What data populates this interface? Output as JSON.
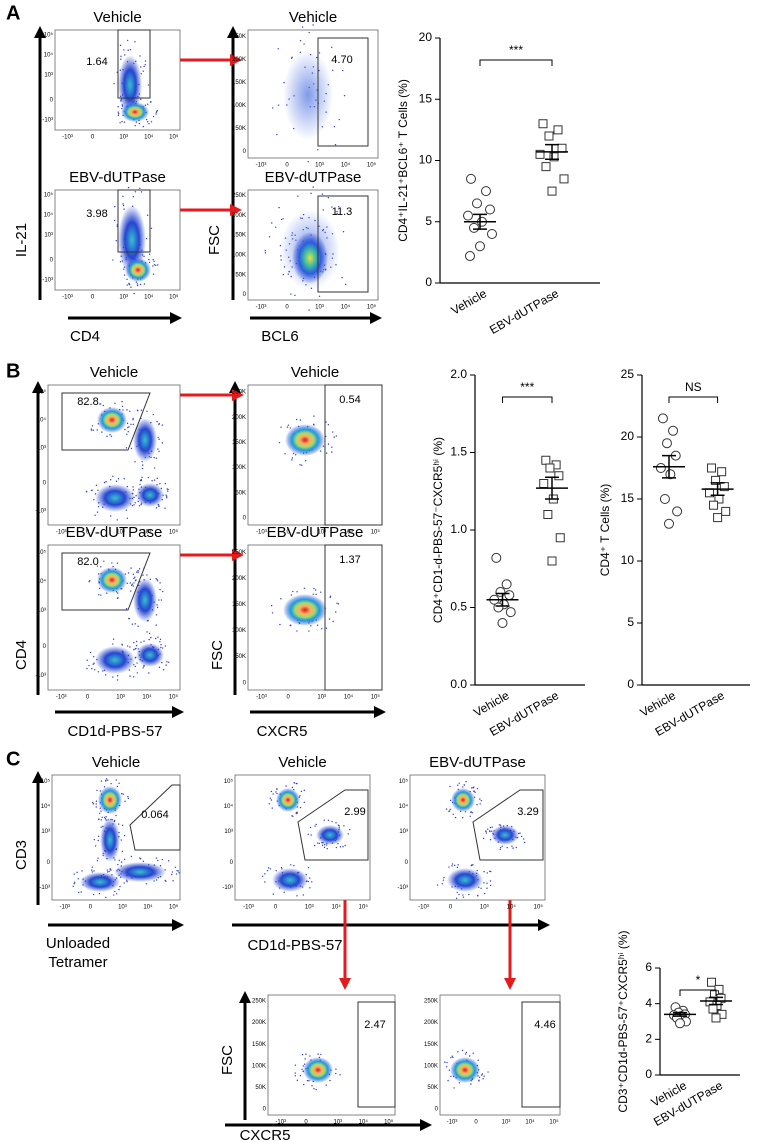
{
  "panel_labels": [
    "A",
    "B",
    "C"
  ],
  "axis_labels": [
    "IL-21",
    "CD4",
    "FSC",
    "BCL6",
    "CD4",
    "CD1d-PBS-57",
    "FSC",
    "CXCR5",
    "CD3",
    "Unloaded",
    "Tetramer",
    "CD1d-PBS-57",
    "FSC",
    "CXCR5"
  ],
  "flow_ticks": {
    "log": [
      "-10³",
      "0",
      "10³",
      "10⁴",
      "10⁵"
    ],
    "fsc": [
      "0",
      "50K",
      "100K",
      "150K",
      "200K",
      "250K"
    ]
  },
  "flow_plots": [
    {
      "title": "Vehicle",
      "gate": "1.64"
    },
    {
      "title": "EBV-dUTPase",
      "gate": "3.98"
    },
    {
      "title": "Vehicle",
      "gate": "4.70"
    },
    {
      "title": "EBV-dUTPase",
      "gate": "11.3"
    },
    {
      "title": "Vehicle",
      "gate": "82.8"
    },
    {
      "title": "EBV-dUTPase",
      "gate": "82.0"
    },
    {
      "title": "Vehicle",
      "gate": "0.54"
    },
    {
      "title": "EBV-dUTPase",
      "gate": "1.37"
    },
    {
      "title": "Vehicle",
      "gate": "0.064"
    },
    {
      "title": "Vehicle",
      "gate": "2.99"
    },
    {
      "title": "EBV-dUTPase",
      "gate": "3.29"
    },
    {
      "gate": "2.47"
    },
    {
      "gate": "4.46"
    }
  ],
  "chart_data": [
    {
      "type": "strip",
      "ylabel": "CD4⁺IL-21⁺BCL6⁺ T Cells (%)",
      "categories": [
        "Vehicle",
        "EBV-dUTPase"
      ],
      "series": [
        {
          "marker": "circle",
          "values": [
            8.5,
            7.5,
            6.5,
            6,
            5.5,
            5,
            4.5,
            4,
            3,
            2.2
          ],
          "mean": 5.0,
          "sem": 0.6
        },
        {
          "marker": "square",
          "values": [
            13,
            12.5,
            12,
            11,
            10.5,
            10.3,
            9.5,
            8.5,
            7.5
          ],
          "mean": 10.7,
          "sem": 0.6
        }
      ],
      "significance": "***",
      "ylim": [
        0,
        20
      ],
      "yticks": [
        0,
        5,
        10,
        15,
        20
      ]
    },
    {
      "type": "strip",
      "ylabel": "CD4⁺CD1-d-PBS-57⁻CXCR5ʰⁱ (%)",
      "categories": [
        "Vehicle",
        "EBV-dUTPase"
      ],
      "series": [
        {
          "marker": "circle",
          "values": [
            0.82,
            0.65,
            0.6,
            0.58,
            0.55,
            0.52,
            0.5,
            0.47,
            0.4
          ],
          "mean": 0.55,
          "sem": 0.04
        },
        {
          "marker": "square",
          "values": [
            1.45,
            1.42,
            1.4,
            1.35,
            1.3,
            1.2,
            1.1,
            0.95,
            0.8
          ],
          "mean": 1.27,
          "sem": 0.07
        }
      ],
      "significance": "***",
      "ylim": [
        0,
        2
      ],
      "yticks": [
        {
          "value": 0,
          "label": "0.0"
        },
        0.5,
        {
          "value": 1,
          "label": "1.0"
        },
        1.5,
        {
          "value": 2,
          "label": "2.0"
        }
      ]
    },
    {
      "type": "strip",
      "ylabel": "CD4⁺ T Cells (%)",
      "categories": [
        "Vehicle",
        "EBV-dUTPase"
      ],
      "series": [
        {
          "marker": "circle",
          "values": [
            21.5,
            20.5,
            19.5,
            18.5,
            17.5,
            17,
            15,
            14,
            13
          ],
          "mean": 17.6,
          "sem": 0.9
        },
        {
          "marker": "square",
          "values": [
            17.5,
            17.2,
            16.5,
            16,
            15.5,
            15,
            14.5,
            14,
            13.5
          ],
          "mean": 15.8,
          "sem": 0.5
        }
      ],
      "significance": "NS",
      "ylim": [
        0,
        25
      ],
      "yticks": [
        0,
        5,
        10,
        15,
        20,
        25
      ]
    },
    {
      "type": "strip",
      "ylabel": "CD3⁺CD1d-PBS-57⁺CXCR5ʰⁱ (%)",
      "categories": [
        "Vehicle",
        "EBV-dUTPase"
      ],
      "series": [
        {
          "marker": "circle",
          "values": [
            3.8,
            3.6,
            3.5,
            3.4,
            3.35,
            3.3,
            3.2,
            3.0,
            2.9
          ],
          "mean": 3.4,
          "sem": 0.1
        },
        {
          "marker": "square",
          "values": [
            5.2,
            4.8,
            4.5,
            4.3,
            4.1,
            3.9,
            3.7,
            3.4,
            3.2
          ],
          "mean": 4.15,
          "sem": 0.2
        }
      ],
      "significance": "*",
      "ylim": [
        0,
        6
      ],
      "yticks": [
        0,
        2,
        4,
        6
      ]
    }
  ]
}
